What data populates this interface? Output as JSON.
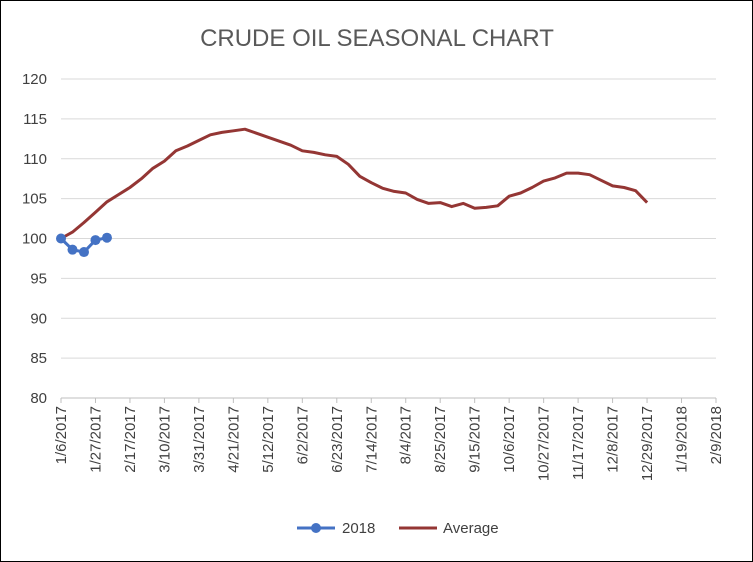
{
  "chart_data": {
    "type": "line",
    "title": "CRUDE OIL SEASONAL CHART",
    "xlabel": "",
    "ylabel": "",
    "ylim": [
      80,
      120
    ],
    "y_ticks": [
      80,
      85,
      90,
      95,
      100,
      105,
      110,
      115,
      120
    ],
    "x_range_days": [
      "1/6/2017",
      "2/9/2018"
    ],
    "x_ticks": [
      "1/6/2017",
      "1/27/2017",
      "2/17/2017",
      "3/10/2017",
      "3/31/2017",
      "4/21/2017",
      "5/12/2017",
      "6/2/2017",
      "6/23/2017",
      "7/14/2017",
      "8/4/2017",
      "8/25/2017",
      "9/15/2017",
      "10/6/2017",
      "10/27/2017",
      "11/17/2017",
      "12/8/2017",
      "12/29/2017",
      "1/19/2018",
      "2/9/2018"
    ],
    "grid": true,
    "legend_position": "bottom",
    "series": [
      {
        "name": "2018",
        "color": "#4472C4",
        "marker": "circle",
        "points": [
          [
            "1/6/2017",
            100.0
          ],
          [
            "1/13/2017",
            98.6
          ],
          [
            "1/20/2017",
            98.3
          ],
          [
            "1/27/2017",
            99.8
          ],
          [
            "2/3/2017",
            100.1
          ]
        ]
      },
      {
        "name": "Average",
        "color": "#943634",
        "marker": "none",
        "points": [
          [
            "1/6/2017",
            100.0
          ],
          [
            "1/13/2017",
            100.8
          ],
          [
            "1/20/2017",
            102.0
          ],
          [
            "1/27/2017",
            103.3
          ],
          [
            "2/3/2017",
            104.6
          ],
          [
            "2/10/2017",
            105.5
          ],
          [
            "2/17/2017",
            106.4
          ],
          [
            "2/24/2017",
            107.5
          ],
          [
            "3/3/2017",
            108.8
          ],
          [
            "3/10/2017",
            109.7
          ],
          [
            "3/17/2017",
            111.0
          ],
          [
            "3/24/2017",
            111.6
          ],
          [
            "3/31/2017",
            112.3
          ],
          [
            "4/7/2017",
            113.0
          ],
          [
            "4/14/2017",
            113.3
          ],
          [
            "4/21/2017",
            113.5
          ],
          [
            "4/28/2017",
            113.7
          ],
          [
            "5/5/2017",
            113.2
          ],
          [
            "5/12/2017",
            112.7
          ],
          [
            "5/19/2017",
            112.2
          ],
          [
            "5/26/2017",
            111.7
          ],
          [
            "6/2/2017",
            111.0
          ],
          [
            "6/9/2017",
            110.8
          ],
          [
            "6/16/2017",
            110.5
          ],
          [
            "6/23/2017",
            110.3
          ],
          [
            "6/30/2017",
            109.3
          ],
          [
            "7/7/2017",
            107.8
          ],
          [
            "7/14/2017",
            107.0
          ],
          [
            "7/21/2017",
            106.3
          ],
          [
            "7/28/2017",
            105.9
          ],
          [
            "8/4/2017",
            105.7
          ],
          [
            "8/11/2017",
            104.9
          ],
          [
            "8/18/2017",
            104.4
          ],
          [
            "8/25/2017",
            104.5
          ],
          [
            "9/1/2017",
            104.0
          ],
          [
            "9/8/2017",
            104.4
          ],
          [
            "9/15/2017",
            103.8
          ],
          [
            "9/22/2017",
            103.9
          ],
          [
            "9/29/2017",
            104.1
          ],
          [
            "10/6/2017",
            105.3
          ],
          [
            "10/13/2017",
            105.7
          ],
          [
            "10/20/2017",
            106.4
          ],
          [
            "10/27/2017",
            107.2
          ],
          [
            "11/3/2017",
            107.6
          ],
          [
            "11/10/2017",
            108.2
          ],
          [
            "11/17/2017",
            108.2
          ],
          [
            "11/24/2017",
            108.0
          ],
          [
            "12/1/2017",
            107.3
          ],
          [
            "12/8/2017",
            106.6
          ],
          [
            "12/15/2017",
            106.4
          ],
          [
            "12/22/2017",
            106.0
          ],
          [
            "12/29/2017",
            104.5
          ]
        ]
      }
    ]
  }
}
